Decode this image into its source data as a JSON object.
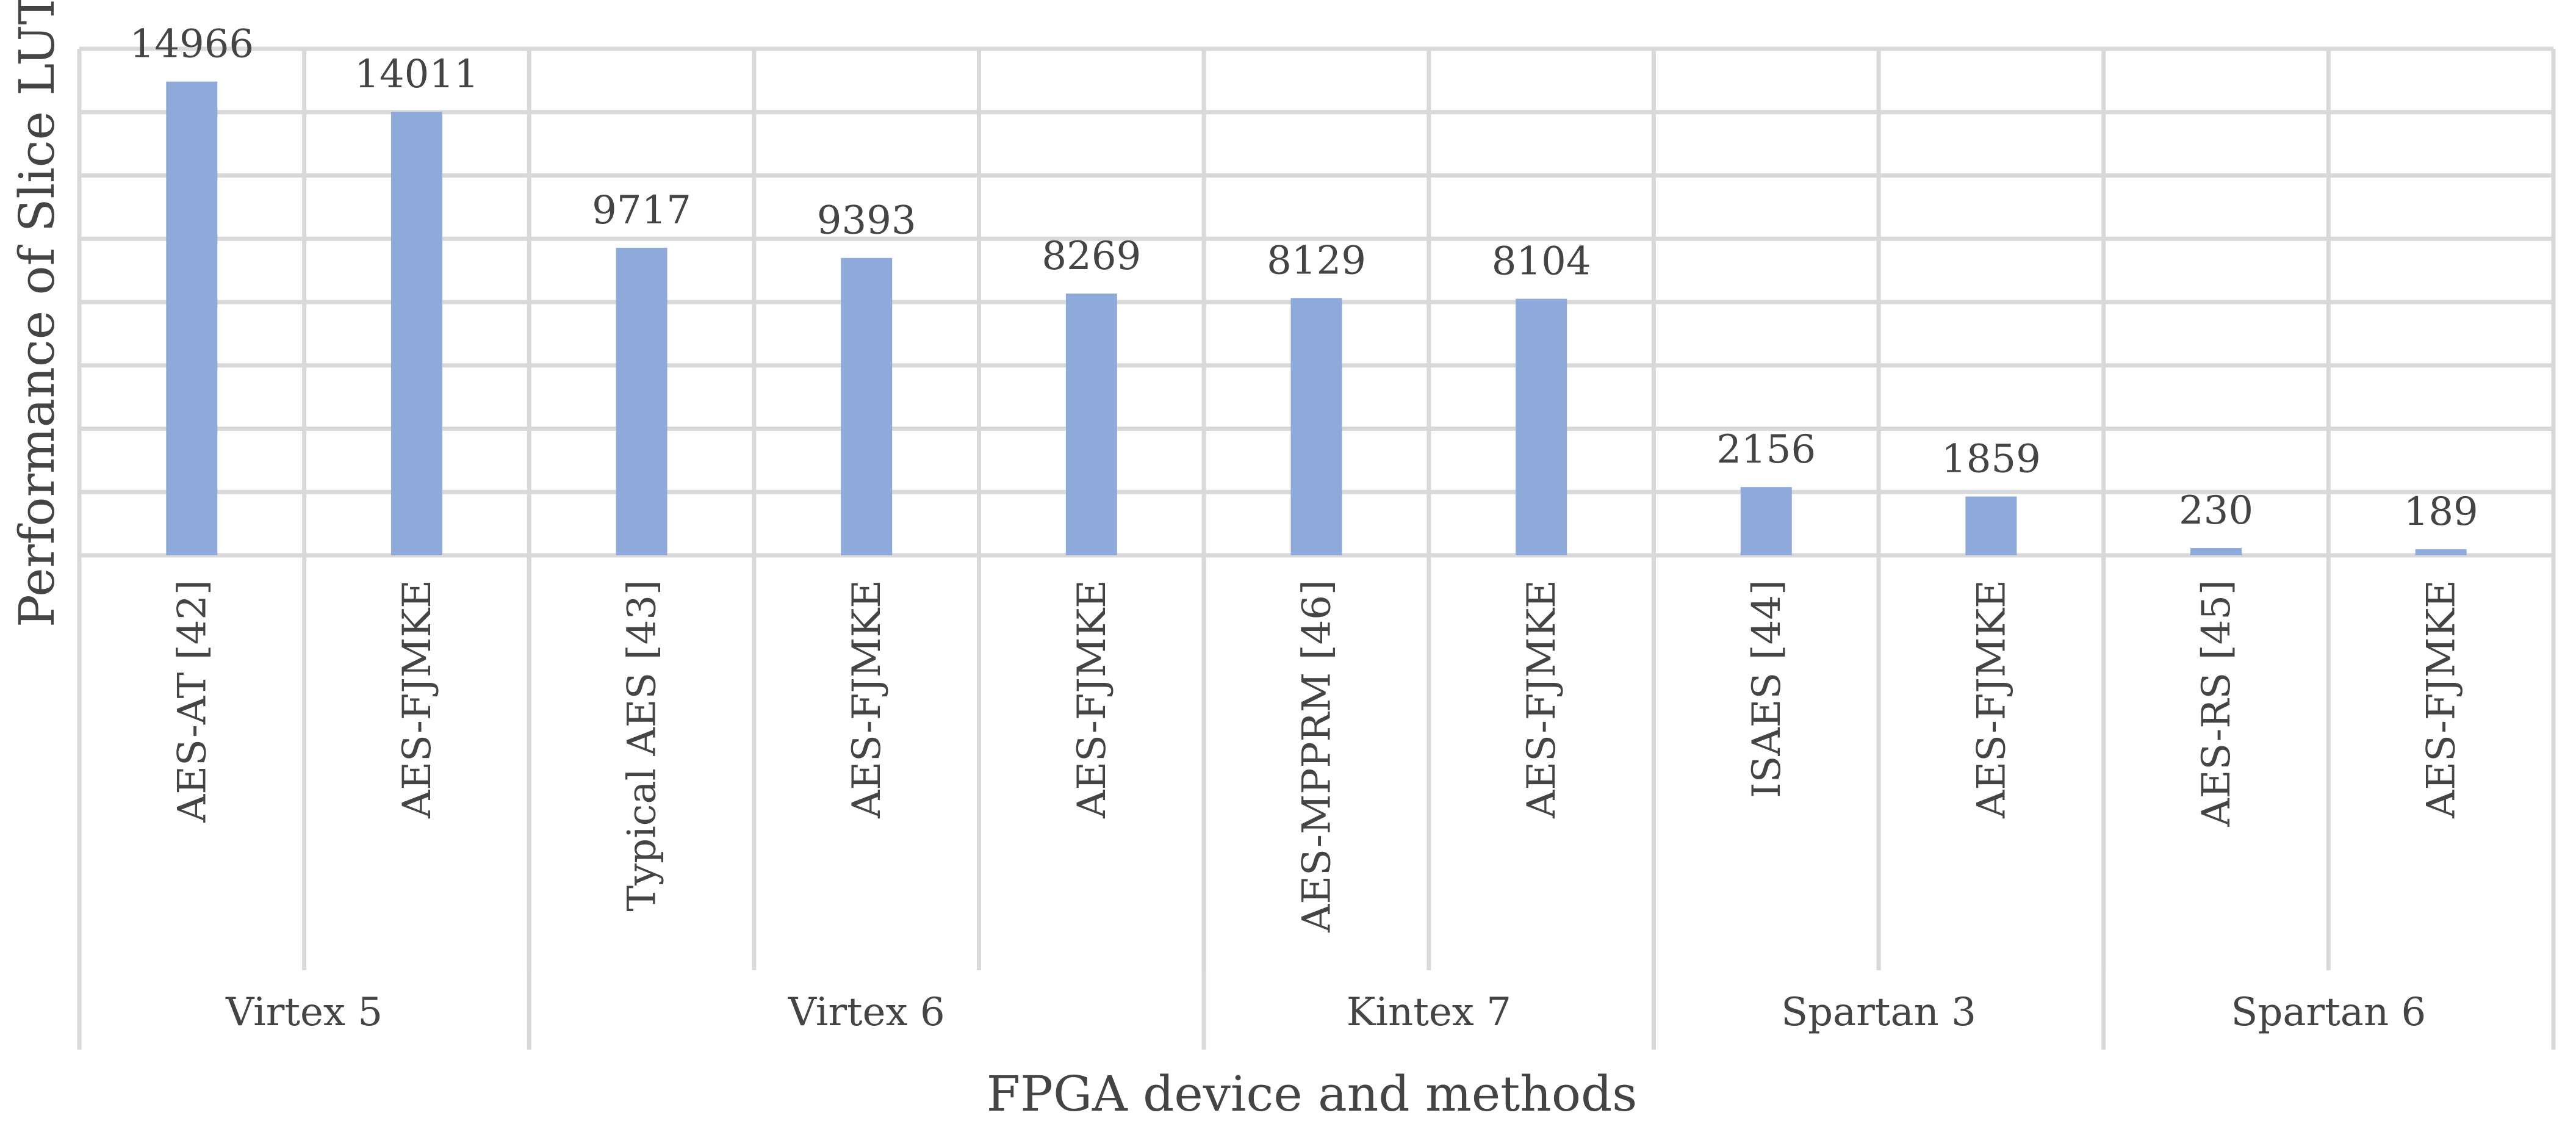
{
  "chart_data": {
    "type": "bar",
    "title": "",
    "xlabel": "FPGA device and methods",
    "ylabel": "Performance of Slice LUTs",
    "ylim": [
      0,
      16000
    ],
    "y_grid_step": 2000,
    "grid": true,
    "legend": "none",
    "bar_color": "#8eaadb",
    "grid_color": "#d9d9d9",
    "categories": [
      "AES-AT [42]",
      "AES-FJMKE",
      "Typical AES [43]",
      "AES-FJMKE",
      "AES-FJMKE",
      "AES-MPPRM [46]",
      "AES-FJMKE",
      "ISAES [44]",
      "AES-FJMKE",
      "AES-RS [45]",
      "AES-FJMKE"
    ],
    "values": [
      14966,
      14011,
      9717,
      9393,
      8269,
      8129,
      8104,
      2156,
      1859,
      230,
      189
    ],
    "groups": [
      {
        "name": "Virtex 5",
        "count": 2
      },
      {
        "name": "Virtex 6",
        "count": 3
      },
      {
        "name": "Kintex 7",
        "count": 2
      },
      {
        "name": "Spartan 3",
        "count": 2
      },
      {
        "name": "Spartan 6",
        "count": 2
      }
    ]
  }
}
